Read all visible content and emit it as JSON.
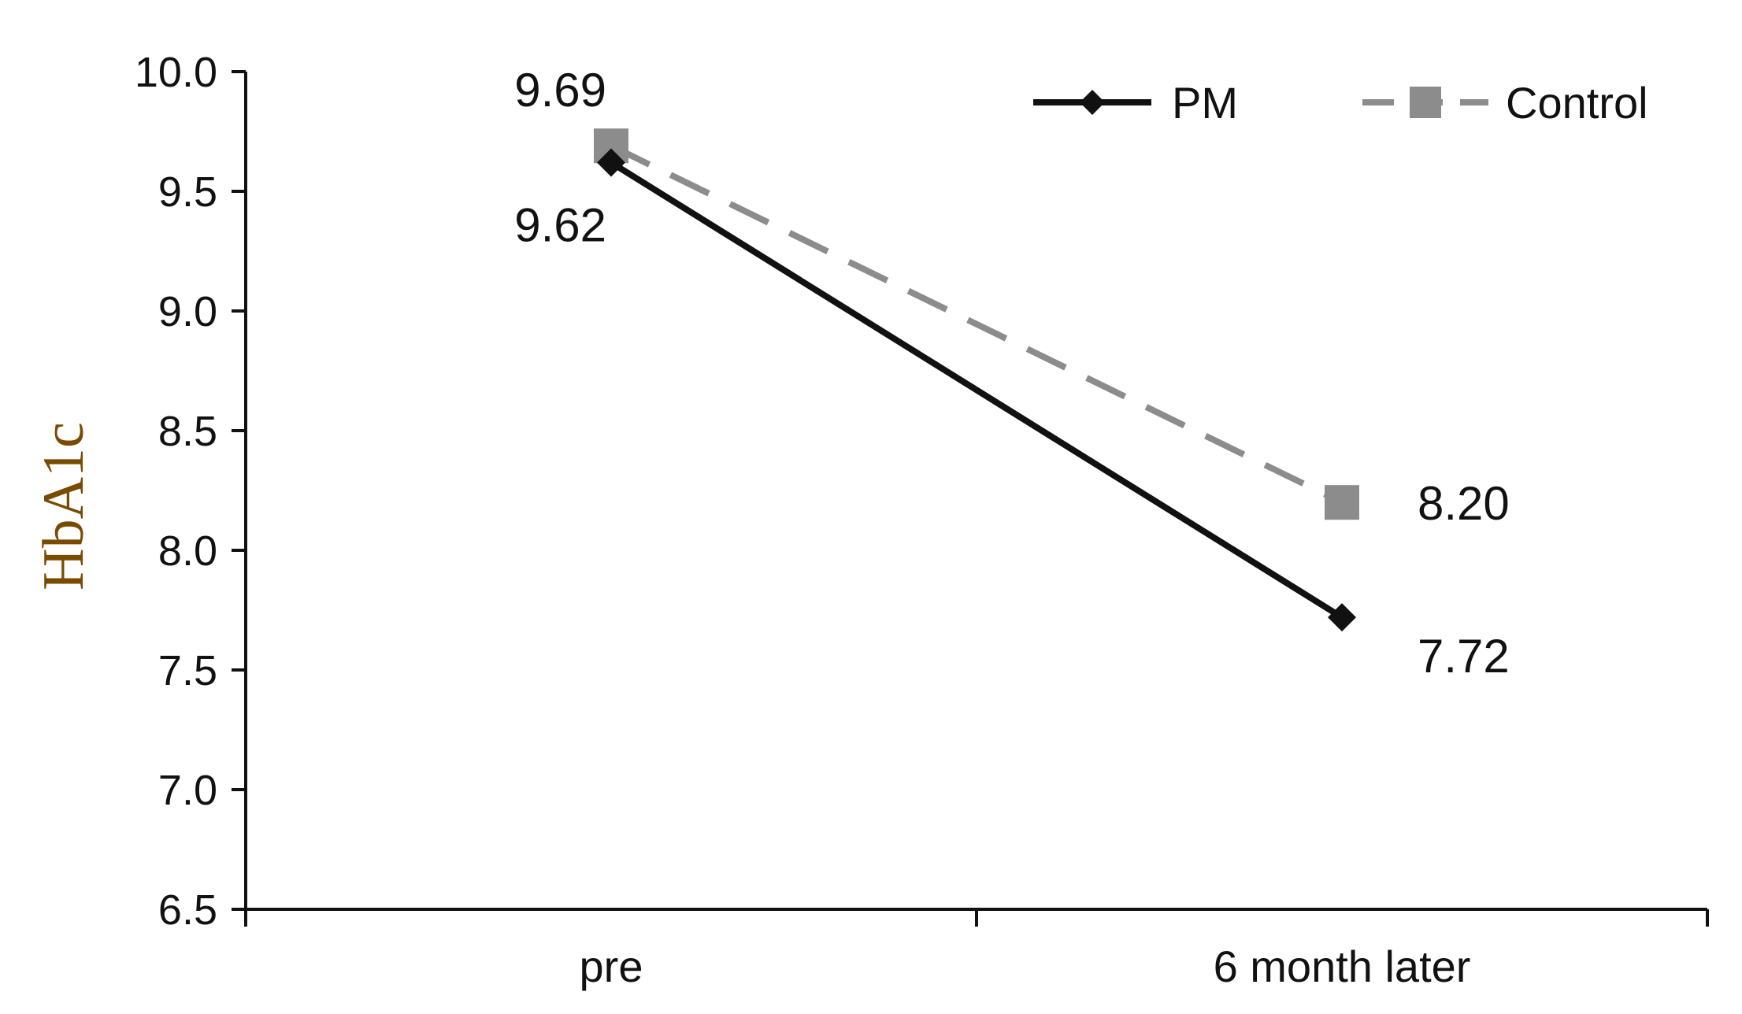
{
  "chart_data": {
    "type": "line",
    "title": "",
    "xlabel": "",
    "ylabel": "HbA1c",
    "ylabel_color": "#7a4a00",
    "categories": [
      "pre",
      "6 month later"
    ],
    "ylim": [
      6.5,
      10.0
    ],
    "yticks": [
      6.5,
      7.0,
      7.5,
      8.0,
      8.5,
      9.0,
      9.5,
      10.0
    ],
    "ytick_labels": [
      "6.5",
      "7.0",
      "7.5",
      "8.0",
      "8.5",
      "9.0",
      "9.5",
      "10.0"
    ],
    "grid": false,
    "legend_position": "top-right",
    "series": [
      {
        "name": "PM",
        "values": [
          9.62,
          7.72
        ],
        "labels": [
          "9.62",
          "7.72"
        ],
        "color": "#111111",
        "line_style": "solid",
        "marker": "diamond"
      },
      {
        "name": "Control",
        "values": [
          9.69,
          8.2
        ],
        "labels": [
          "9.69",
          "8.20"
        ],
        "color": "#8c8c8c",
        "line_style": "dashed",
        "marker": "square"
      }
    ]
  }
}
